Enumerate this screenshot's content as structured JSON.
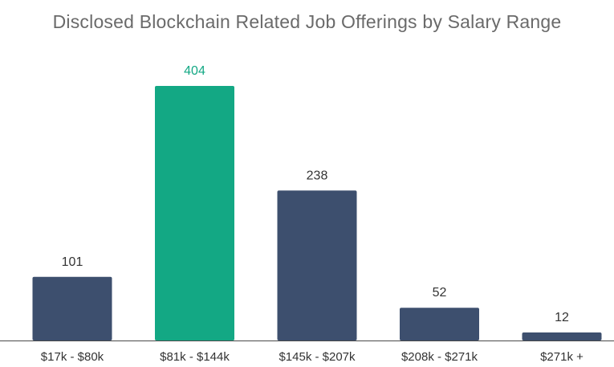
{
  "chart_data": {
    "type": "bar",
    "title": "Disclosed Blockchain Related Job Offerings by Salary Range",
    "categories": [
      "$17k - $80k",
      "$81k - $144k",
      "$145k - $207k",
      "$208k - $271k",
      "$271k +"
    ],
    "values": [
      101,
      404,
      238,
      52,
      12
    ],
    "data_labels": [
      "101",
      "404",
      "238",
      "52",
      "12"
    ],
    "highlight_index": 1,
    "xlabel": "",
    "ylabel": "",
    "ylim": [
      0,
      404
    ],
    "grid": false,
    "legend": "none",
    "colors": {
      "bar": "#3d4f6e",
      "highlight": "#13a884",
      "highlight_label": "#13a884",
      "label": "#333333",
      "axis": "#4a4a4a",
      "title": "#6a6a6a"
    }
  }
}
